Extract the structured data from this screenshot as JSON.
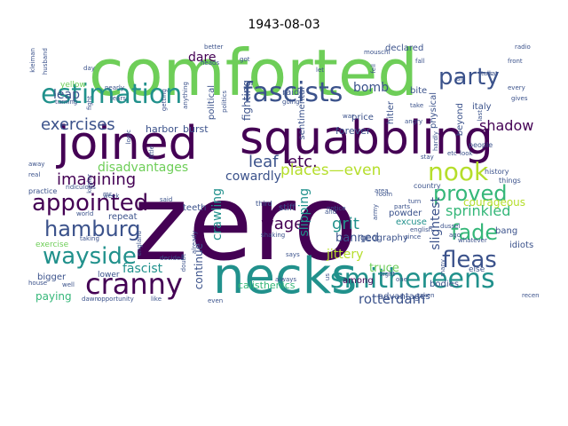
{
  "title": "1943-08-03",
  "palette": {
    "purple": "#440154",
    "indigo": "#3b528b",
    "blue": "#31688e",
    "teal": "#21918c",
    "sea": "#35b779",
    "green": "#6ece58",
    "lime": "#b5de2b",
    "slate": "#46327e",
    "grey": "#9fa6b0"
  },
  "words": [
    {
      "text": "zero",
      "color": "purple",
      "weight": 1
    },
    {
      "text": "comforted",
      "color": "green",
      "weight": 0.6
    },
    {
      "text": "squabbling",
      "color": "purple",
      "weight": 0.45
    },
    {
      "text": "joined",
      "color": "purple",
      "weight": 0.44
    },
    {
      "text": "necks",
      "color": "teal",
      "weight": 0.34
    },
    {
      "text": "smithereens",
      "color": "teal",
      "weight": 0.25
    },
    {
      "text": "cranny",
      "color": "purple",
      "weight": 0.22
    },
    {
      "text": "estimation",
      "color": "teal",
      "weight": 0.2
    },
    {
      "text": "fascists",
      "color": "indigo",
      "weight": 0.2
    },
    {
      "text": "party",
      "color": "indigo",
      "weight": 0.18
    },
    {
      "text": "wayside",
      "color": "teal",
      "weight": 0.18
    },
    {
      "text": "fleas",
      "color": "indigo",
      "weight": 0.18
    },
    {
      "text": "appointed",
      "color": "purple",
      "weight": 0.17
    },
    {
      "text": "hamburg",
      "color": "indigo",
      "weight": 0.17
    },
    {
      "text": "nook",
      "color": "lime",
      "weight": 0.17
    },
    {
      "text": "proved",
      "color": "sea",
      "weight": 0.16
    },
    {
      "text": "fade",
      "color": "sea",
      "weight": 0.16
    },
    {
      "text": "exercises",
      "color": "indigo",
      "weight": 0.14
    },
    {
      "text": "leaf",
      "color": "indigo",
      "weight": 0.12
    },
    {
      "text": "etc.",
      "color": "purple",
      "weight": 0.12
    },
    {
      "text": "imagining",
      "color": "purple",
      "weight": 0.12
    },
    {
      "text": "places—even",
      "color": "lime",
      "weight": 0.12
    },
    {
      "text": "disadvantages",
      "color": "green",
      "weight": 0.11
    },
    {
      "text": "sprinkled",
      "color": "sea",
      "weight": 0.11
    },
    {
      "text": "rotterdam",
      "color": "indigo",
      "weight": 0.11
    },
    {
      "text": "wage",
      "color": "purple",
      "weight": 0.11
    },
    {
      "text": "grit",
      "color": "teal",
      "weight": 0.11
    },
    {
      "text": "shadow",
      "color": "purple",
      "weight": 0.1
    },
    {
      "text": "cowardly",
      "color": "indigo",
      "weight": 0.1
    },
    {
      "text": "bomb",
      "color": "indigo",
      "weight": 0.1
    },
    {
      "text": "fascist",
      "color": "teal",
      "weight": 0.1
    },
    {
      "text": "jittery",
      "color": "lime",
      "weight": 0.1
    },
    {
      "text": "crawling",
      "color": "teal",
      "weight": 0.1
    },
    {
      "text": "slipping",
      "color": "teal",
      "weight": 0.1
    },
    {
      "text": "slightest",
      "color": "indigo",
      "weight": 0.1
    },
    {
      "text": "dare",
      "color": "purple",
      "weight": 0.09
    },
    {
      "text": "leap",
      "color": "indigo",
      "weight": 0.09
    },
    {
      "text": "banned",
      "color": "indigo",
      "weight": 0.08
    },
    {
      "text": "truce",
      "color": "green",
      "weight": 0.08
    },
    {
      "text": "paying",
      "color": "sea",
      "weight": 0.08
    },
    {
      "text": "continue",
      "color": "indigo",
      "weight": 0.08
    },
    {
      "text": "fighting",
      "color": "indigo",
      "weight": 0.08
    },
    {
      "text": "courageous",
      "color": "lime",
      "weight": 0.07
    },
    {
      "text": "bodies",
      "color": "indigo",
      "weight": 0.06
    },
    {
      "text": "calisthenics",
      "color": "sea",
      "weight": 0.06
    },
    {
      "text": "forever",
      "color": "indigo",
      "weight": 0.06
    },
    {
      "text": "harbor",
      "color": "indigo",
      "weight": 0.06
    },
    {
      "text": "burst",
      "color": "indigo",
      "weight": 0.06
    },
    {
      "text": "teeth",
      "color": "indigo",
      "weight": 0.06
    },
    {
      "text": "among",
      "color": "purple",
      "weight": 0.06
    },
    {
      "text": "powder",
      "color": "indigo",
      "weight": 0.06
    },
    {
      "text": "geography",
      "color": "indigo",
      "weight": 0.06
    },
    {
      "text": "idiots",
      "color": "indigo",
      "weight": 0.06
    },
    {
      "text": "bang",
      "color": "indigo",
      "weight": 0.06
    },
    {
      "text": "beyond",
      "color": "indigo",
      "weight": 0.06
    },
    {
      "text": "italy",
      "color": "indigo",
      "weight": 0.06
    },
    {
      "text": "price",
      "color": "indigo",
      "weight": 0.05
    },
    {
      "text": "physical",
      "color": "indigo",
      "weight": 0.05
    },
    {
      "text": "raid",
      "color": "indigo",
      "weight": 0.05
    },
    {
      "text": "stiff",
      "color": "indigo",
      "weight": 0.05
    },
    {
      "text": "hitler",
      "color": "indigo",
      "weight": 0.05
    },
    {
      "text": "political",
      "color": "indigo",
      "weight": 0.05
    },
    {
      "text": "sentimental",
      "color": "indigo",
      "weight": 0.05
    },
    {
      "text": "declared",
      "color": "indigo",
      "weight": 0.05
    },
    {
      "text": "bite",
      "color": "indigo",
      "weight": 0.05
    },
    {
      "text": "advantages",
      "color": "indigo",
      "weight": 0.05
    },
    {
      "text": "lower",
      "color": "indigo",
      "weight": 0.05
    },
    {
      "text": "bigger",
      "color": "indigo",
      "weight": 0.05
    },
    {
      "text": "excuse",
      "color": "teal",
      "weight": 0.05
    },
    {
      "text": "else",
      "color": "indigo",
      "weight": 0.05
    },
    {
      "text": "repeat",
      "color": "indigo",
      "weight": 0.05
    },
    {
      "text": "yellow",
      "color": "green",
      "weight": 0.05
    },
    {
      "text": "exercise",
      "color": "green",
      "weight": 0.05
    },
    {
      "text": "third",
      "color": "indigo",
      "weight": 0.04
    },
    {
      "text": "history",
      "color": "indigo",
      "weight": 0.04
    },
    {
      "text": "country",
      "color": "indigo",
      "weight": 0.04
    },
    {
      "text": "things",
      "color": "indigo",
      "weight": 0.04
    },
    {
      "text": "people",
      "color": "indigo",
      "weight": 0.04
    },
    {
      "text": "practice",
      "color": "indigo",
      "weight": 0.04
    },
    {
      "text": "always",
      "color": "indigo",
      "weight": 0.04
    },
    {
      "text": "says",
      "color": "indigo",
      "weight": 0.04
    },
    {
      "text": "parts",
      "color": "indigo",
      "weight": 0.04
    },
    {
      "text": "turn",
      "color": "indigo",
      "weight": 0.04
    },
    {
      "text": "english",
      "color": "indigo",
      "weight": 0.04
    },
    {
      "text": "since",
      "color": "indigo",
      "weight": 0.04
    },
    {
      "text": "dussel",
      "color": "indigo",
      "weight": 0.04
    },
    {
      "text": "taken",
      "color": "indigo",
      "weight": 0.04
    },
    {
      "text": "recently",
      "color": "indigo",
      "weight": 0.04
    },
    {
      "text": "even",
      "color": "indigo",
      "weight": 0.04
    },
    {
      "text": "like",
      "color": "indigo",
      "weight": 0.04
    },
    {
      "text": "well",
      "color": "indigo",
      "weight": 0.04
    },
    {
      "text": "house",
      "color": "indigo",
      "weight": 0.04
    },
    {
      "text": "real",
      "color": "indigo",
      "weight": 0.04
    },
    {
      "text": "said",
      "color": "indigo",
      "weight": 0.04
    },
    {
      "text": "week",
      "color": "indigo",
      "weight": 0.04
    },
    {
      "text": "little",
      "color": "indigo",
      "weight": 0.04
    },
    {
      "text": "ridiculous",
      "color": "indigo",
      "weight": 0.04
    },
    {
      "text": "away",
      "color": "indigo",
      "weight": 0.04
    },
    {
      "text": "better",
      "color": "indigo",
      "weight": 0.04
    },
    {
      "text": "heads",
      "color": "indigo",
      "weight": 0.04
    },
    {
      "text": "got",
      "color": "indigo",
      "weight": 0.04
    },
    {
      "text": "tears",
      "color": "indigo",
      "weight": 0.04
    },
    {
      "text": "nearly",
      "color": "indigo",
      "weight": 0.04
    },
    {
      "text": "fight",
      "color": "indigo",
      "weight": 0.04
    },
    {
      "text": "getting",
      "color": "indigo",
      "weight": 0.04
    },
    {
      "text": "anything",
      "color": "indigo",
      "weight": 0.04
    },
    {
      "text": "politics",
      "color": "indigo",
      "weight": 0.04
    },
    {
      "text": "going",
      "color": "indigo",
      "weight": 0.04
    },
    {
      "text": "let",
      "color": "indigo",
      "weight": 0.04
    },
    {
      "text": "fell",
      "color": "indigo",
      "weight": 0.04
    },
    {
      "text": "fall",
      "color": "indigo",
      "weight": 0.04
    },
    {
      "text": "take",
      "color": "indigo",
      "weight": 0.04
    },
    {
      "text": "angry",
      "color": "indigo",
      "weight": 0.04
    },
    {
      "text": "cat",
      "color": "indigo",
      "weight": 0.04
    },
    {
      "text": "gives",
      "color": "indigo",
      "weight": 0.04
    },
    {
      "text": "every",
      "color": "indigo",
      "weight": 0.04
    },
    {
      "text": "radio",
      "color": "indigo",
      "weight": 0.04
    },
    {
      "text": "front",
      "color": "indigo",
      "weight": 0.04
    },
    {
      "text": "air",
      "color": "indigo",
      "weight": 0.04
    },
    {
      "text": "look",
      "color": "indigo",
      "weight": 0.04
    },
    {
      "text": "etc",
      "color": "indigo",
      "weight": 0.04
    },
    {
      "text": "hardly",
      "color": "indigo",
      "weight": 0.04
    },
    {
      "text": "mouschi",
      "color": "indigo",
      "weight": 0.04
    },
    {
      "text": "war",
      "color": "indigo",
      "weight": 0.04
    },
    {
      "text": "kleiman",
      "color": "indigo",
      "weight": 0.04
    },
    {
      "text": "husband",
      "color": "indigo",
      "weight": 0.04
    },
    {
      "text": "turning",
      "color": "indigo",
      "weight": 0.04
    },
    {
      "text": "day",
      "color": "indigo",
      "weight": 0.04
    },
    {
      "text": "mr.",
      "color": "indigo",
      "weight": 0.04
    },
    {
      "text": "kugler",
      "color": "indigo",
      "weight": 0.04
    },
    {
      "text": "logic",
      "color": "indigo",
      "weight": 0.04
    },
    {
      "text": "england",
      "color": "indigo",
      "weight": 0.04
    },
    {
      "text": "doubt",
      "color": "indigo",
      "weight": 0.04
    },
    {
      "text": "already",
      "color": "indigo",
      "weight": 0.04
    },
    {
      "text": "decided",
      "color": "indigo",
      "weight": 0.04
    },
    {
      "text": "opportunity",
      "color": "indigo",
      "weight": 0.04
    },
    {
      "text": "dawn",
      "color": "indigo",
      "weight": 0.04
    },
    {
      "text": "taking",
      "color": "indigo",
      "weight": 0.04
    },
    {
      "text": "world",
      "color": "indigo",
      "weight": 0.04
    },
    {
      "text": "shaking",
      "color": "indigo",
      "weight": 0.04
    },
    {
      "text": "notice",
      "color": "indigo",
      "weight": 0.04
    },
    {
      "text": "us",
      "color": "indigo",
      "weight": 0.04
    },
    {
      "text": "one",
      "color": "indigo",
      "weight": 0.04
    },
    {
      "text": "many",
      "color": "indigo",
      "weight": 0.04
    },
    {
      "text": "ago",
      "color": "indigo",
      "weight": 0.04
    },
    {
      "text": "whatever",
      "color": "indigo",
      "weight": 0.04
    },
    {
      "text": "sight",
      "color": "indigo",
      "weight": 0.04
    },
    {
      "text": "last",
      "color": "indigo",
      "weight": 0.04
    },
    {
      "text": "room",
      "color": "indigo",
      "weight": 0.04
    },
    {
      "text": "and",
      "color": "indigo",
      "weight": 0.04
    },
    {
      "text": "army",
      "color": "indigo",
      "weight": 0.04
    },
    {
      "text": "area",
      "color": "indigo",
      "weight": 0.04
    },
    {
      "text": "talk",
      "color": "indigo",
      "weight": 0.04
    },
    {
      "text": "stay",
      "color": "indigo",
      "weight": 0.04
    }
  ]
}
